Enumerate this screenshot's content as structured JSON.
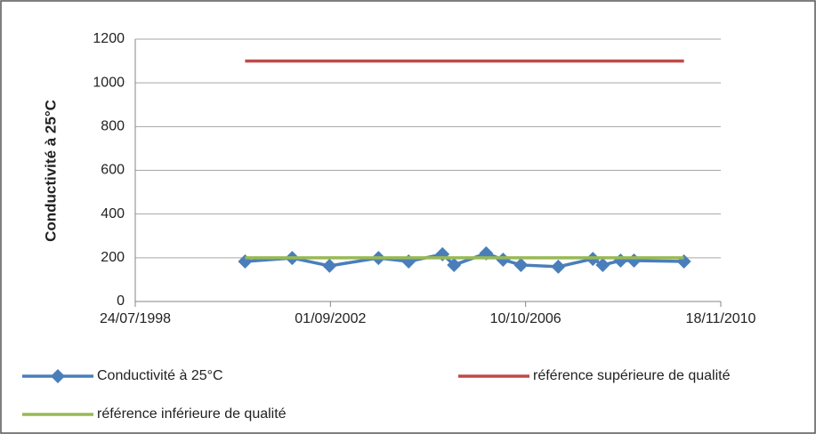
{
  "chart_data": {
    "type": "line",
    "y_label": "Conductivité à 25°C",
    "x": [
      "14/11/2000",
      "11/11/2001",
      "25/08/2002",
      "05/09/2003",
      "24/04/2004",
      "09/01/2005",
      "08/04/2005",
      "11/12/2005",
      "20/04/2006",
      "04/09/2006",
      "18/06/2007",
      "10/03/2008",
      "25/05/2008",
      "09/10/2008",
      "20/01/2009",
      "08/02/2010"
    ],
    "xlim": [
      "24/07/1998",
      "18/11/2010"
    ],
    "xticks": [
      "24/07/1998",
      "01/09/2002",
      "10/10/2006",
      "18/11/2010"
    ],
    "ylim": [
      0,
      1200
    ],
    "yticks": [
      0,
      200,
      400,
      600,
      800,
      1000,
      1200
    ],
    "grid": true,
    "legend": "bottom",
    "series": [
      {
        "name": "Conductivité à 25°C",
        "color": "#4a7ebb",
        "marker": "diamond",
        "values": [
          183,
          199,
          163,
          199,
          183,
          216,
          167,
          220,
          191,
          167,
          159,
          195,
          167,
          187,
          187,
          183
        ]
      },
      {
        "name": "référence supérieure de qualité",
        "color": "#be4b48",
        "values": [
          1100,
          1100,
          1100,
          1100,
          1100,
          1100,
          1100,
          1100,
          1100,
          1100,
          1100,
          1100,
          1100,
          1100,
          1100,
          1100
        ]
      },
      {
        "name": "référence inférieure de qualité",
        "color": "#98b954",
        "values": [
          200,
          200,
          200,
          200,
          200,
          200,
          200,
          200,
          200,
          200,
          200,
          200,
          200,
          200,
          200,
          200
        ]
      }
    ]
  }
}
